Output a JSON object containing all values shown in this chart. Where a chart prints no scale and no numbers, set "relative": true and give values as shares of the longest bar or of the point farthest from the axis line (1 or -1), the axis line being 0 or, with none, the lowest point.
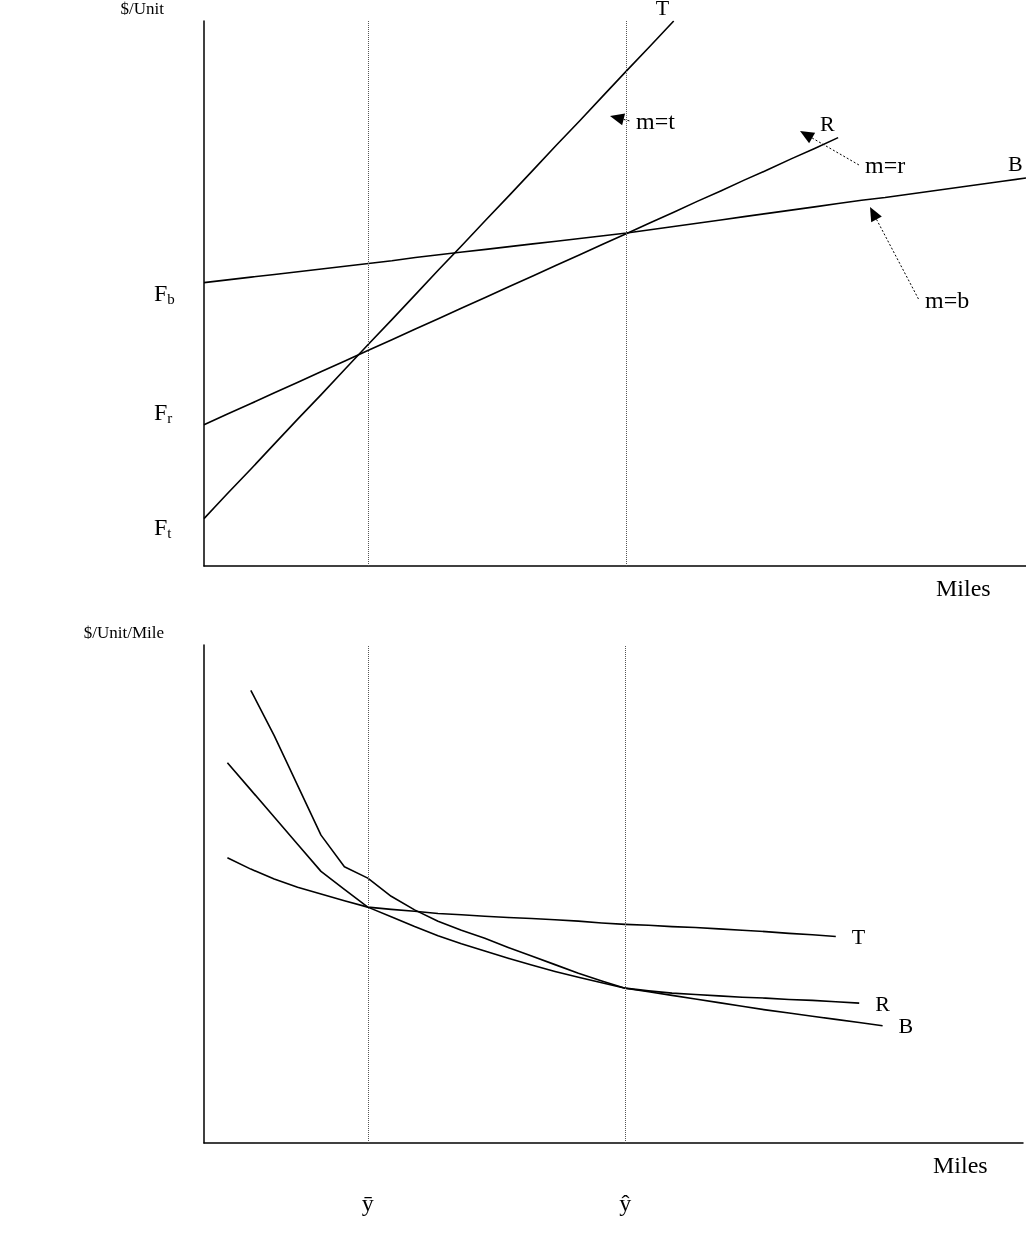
{
  "chart_data": [
    {
      "type": "line",
      "relative": true,
      "ylabel": "$/Unit",
      "xlabel": "Miles",
      "tick_labels": false,
      "grid": false,
      "marker": "none",
      "line_style": "solid",
      "categories": [
        null,
        null,
        null,
        null,
        null,
        null,
        null,
        "ȳ",
        null,
        null,
        null,
        null,
        null,
        null,
        null,
        null,
        null,
        null,
        "ŷ",
        null,
        null,
        null,
        null,
        null,
        null,
        null,
        null,
        null,
        null,
        null,
        null,
        null,
        null,
        null,
        null,
        null
      ],
      "series": [
        {
          "name": "T",
          "color": "#000000",
          "values": [
            0.087,
            0.133,
            0.178,
            0.224,
            0.27,
            0.315,
            0.361,
            0.407,
            0.452,
            0.498,
            0.544,
            0.589,
            0.635,
            0.68,
            0.726,
            0.772,
            0.817,
            0.863,
            0.909,
            0.954,
            1.0,
            null,
            null,
            null,
            null,
            null,
            null,
            null,
            null,
            null,
            null,
            null,
            null,
            null,
            null,
            null
          ]
        },
        {
          "name": "R",
          "color": "#000000",
          "values": [
            0.259,
            0.279,
            0.298,
            0.318,
            0.337,
            0.357,
            0.376,
            0.396,
            0.415,
            0.435,
            0.454,
            0.474,
            0.493,
            0.513,
            0.532,
            0.552,
            0.571,
            0.591,
            0.61,
            0.63,
            0.649,
            0.669,
            0.688,
            0.708,
            0.727,
            0.747,
            0.766,
            0.786,
            null,
            null,
            null,
            null,
            null,
            null,
            null,
            null
          ]
        },
        {
          "name": "B",
          "color": "#000000",
          "values": [
            0.52,
            0.525,
            0.53,
            0.535,
            0.54,
            0.545,
            0.55,
            0.555,
            0.56,
            0.566,
            0.571,
            0.576,
            0.581,
            0.586,
            0.591,
            0.596,
            0.601,
            0.606,
            0.611,
            0.617,
            0.623,
            0.629,
            0.635,
            0.641,
            0.647,
            0.653,
            0.659,
            0.665,
            0.671,
            0.676,
            0.682,
            0.688,
            0.694,
            0.7,
            0.706,
            0.712
          ]
        }
      ],
      "ref_lines": [
        {
          "axis": "x",
          "value": "ȳ"
        },
        {
          "axis": "x",
          "value": "ŷ"
        }
      ],
      "annotations": [
        "F$_{b}$",
        "F$_{r}$",
        "F$_{t}$",
        "m=t",
        "m=r",
        "m=b"
      ]
    },
    {
      "type": "line",
      "relative": true,
      "ylabel": "$/Unit/Mile",
      "xlabel": "Miles",
      "tick_labels": "x",
      "grid": false,
      "marker": "none",
      "line_style": "solid",
      "categories": [
        null,
        null,
        null,
        null,
        null,
        null,
        null,
        "ȳ",
        null,
        null,
        null,
        null,
        null,
        null,
        null,
        null,
        null,
        null,
        "ŷ",
        null,
        null,
        null,
        null,
        null,
        null,
        null,
        null,
        null,
        null,
        null,
        null,
        null,
        null,
        null,
        null,
        null
      ],
      "series": [
        {
          "name": "T",
          "color": "#000000",
          "values": [
            null,
            0.84,
            0.78,
            0.72,
            0.66,
            0.6,
            0.56,
            0.521,
            0.516,
            0.512,
            0.507,
            0.504,
            0.501,
            0.498,
            0.496,
            0.493,
            0.49,
            0.486,
            0.483,
            0.481,
            0.478,
            0.476,
            0.473,
            0.47,
            0.467,
            0.463,
            0.46,
            0.456,
            null,
            null,
            null,
            null,
            null,
            null,
            null,
            null
          ]
        },
        {
          "name": "R",
          "color": "#000000",
          "values": [
            null,
            null,
            1.0,
            0.9,
            0.79,
            0.68,
            0.61,
            0.585,
            0.545,
            0.515,
            0.49,
            0.47,
            0.452,
            0.432,
            0.413,
            0.394,
            0.375,
            0.358,
            0.342,
            0.336,
            0.331,
            0.328,
            0.325,
            0.322,
            0.32,
            0.317,
            0.315,
            0.312,
            0.309,
            null,
            null,
            null,
            null,
            null,
            null,
            null
          ]
        },
        {
          "name": "B",
          "color": "#000000",
          "values": [
            null,
            0.63,
            0.605,
            0.583,
            0.565,
            0.55,
            0.535,
            0.521,
            0.5,
            0.478,
            0.458,
            0.44,
            0.424,
            0.408,
            0.393,
            0.379,
            0.366,
            0.354,
            0.342,
            0.334,
            0.326,
            0.318,
            0.31,
            0.302,
            0.294,
            0.287,
            0.28,
            0.273,
            0.266,
            0.259,
            null,
            null,
            null,
            null,
            null,
            null
          ]
        }
      ],
      "ref_lines": [
        {
          "axis": "x",
          "value": "ȳ"
        },
        {
          "axis": "x",
          "value": "ŷ"
        }
      ]
    }
  ]
}
